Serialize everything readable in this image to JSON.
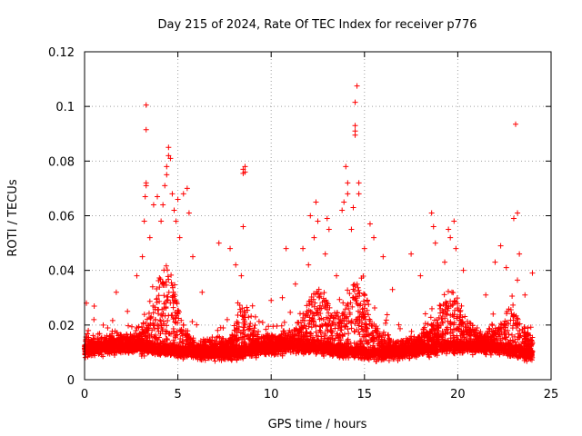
{
  "chart_data": {
    "type": "scatter",
    "title": "Day 215 of 2024, Rate Of TEC Index for receiver p776",
    "xlabel": "GPS time / hours",
    "ylabel": "ROTI / TECUs",
    "xlim": [
      0,
      25
    ],
    "ylim": [
      0,
      0.12
    ],
    "x_ticks": [
      0,
      5,
      10,
      15,
      20,
      25
    ],
    "x_tick_labels": [
      "0",
      "5",
      "10",
      "15",
      "20",
      "25"
    ],
    "y_ticks": [
      0,
      0.02,
      0.04,
      0.06,
      0.08,
      0.1,
      0.12
    ],
    "y_tick_labels": [
      "0",
      "0.02",
      "0.04",
      "0.06",
      "0.08",
      "0.1",
      "0.12"
    ],
    "grid": true,
    "marker": "plus",
    "color": "#ff0000",
    "series": [
      {
        "name": "ROTI",
        "description": "dense scatter of ROTI samples from 0 to 24 h",
        "points": [
          [
            0.1,
            0.028
          ],
          [
            0.2,
            0.018
          ],
          [
            0.5,
            0.022
          ],
          [
            1.0,
            0.02
          ],
          [
            1.7,
            0.032
          ],
          [
            2.3,
            0.025
          ],
          [
            2.8,
            0.038
          ],
          [
            3.1,
            0.045
          ],
          [
            3.2,
            0.058
          ],
          [
            3.25,
            0.067
          ],
          [
            3.3,
            0.071
          ],
          [
            3.3,
            0.072
          ],
          [
            3.3,
            0.0915
          ],
          [
            3.3,
            0.1005
          ],
          [
            3.5,
            0.052
          ],
          [
            3.7,
            0.064
          ],
          [
            3.9,
            0.067
          ],
          [
            4.1,
            0.058
          ],
          [
            4.2,
            0.064
          ],
          [
            4.3,
            0.071
          ],
          [
            4.4,
            0.075
          ],
          [
            4.4,
            0.078
          ],
          [
            4.5,
            0.082
          ],
          [
            4.5,
            0.085
          ],
          [
            4.6,
            0.081
          ],
          [
            4.7,
            0.068
          ],
          [
            4.8,
            0.062
          ],
          [
            4.9,
            0.058
          ],
          [
            5.0,
            0.066
          ],
          [
            5.1,
            0.052
          ],
          [
            5.3,
            0.068
          ],
          [
            5.5,
            0.07
          ],
          [
            5.6,
            0.061
          ],
          [
            5.8,
            0.045
          ],
          [
            6.3,
            0.032
          ],
          [
            7.2,
            0.05
          ],
          [
            7.8,
            0.048
          ],
          [
            8.1,
            0.042
          ],
          [
            8.4,
            0.038
          ],
          [
            8.5,
            0.0755
          ],
          [
            8.5,
            0.077
          ],
          [
            8.6,
            0.078
          ],
          [
            8.6,
            0.076
          ],
          [
            8.5,
            0.056
          ],
          [
            9.0,
            0.027
          ],
          [
            10.0,
            0.029
          ],
          [
            10.6,
            0.03
          ],
          [
            10.8,
            0.048
          ],
          [
            11.3,
            0.035
          ],
          [
            11.7,
            0.048
          ],
          [
            12.0,
            0.042
          ],
          [
            12.1,
            0.06
          ],
          [
            12.3,
            0.052
          ],
          [
            12.4,
            0.065
          ],
          [
            12.5,
            0.058
          ],
          [
            12.9,
            0.046
          ],
          [
            13.0,
            0.059
          ],
          [
            13.1,
            0.055
          ],
          [
            13.5,
            0.038
          ],
          [
            13.8,
            0.062
          ],
          [
            13.9,
            0.065
          ],
          [
            14.0,
            0.078
          ],
          [
            14.1,
            0.072
          ],
          [
            14.1,
            0.068
          ],
          [
            14.3,
            0.055
          ],
          [
            14.4,
            0.063
          ],
          [
            14.5,
            0.0895
          ],
          [
            14.5,
            0.091
          ],
          [
            14.5,
            0.093
          ],
          [
            14.5,
            0.1015
          ],
          [
            14.6,
            0.1075
          ],
          [
            14.7,
            0.072
          ],
          [
            14.7,
            0.068
          ],
          [
            15.0,
            0.048
          ],
          [
            15.3,
            0.057
          ],
          [
            15.5,
            0.052
          ],
          [
            16.0,
            0.045
          ],
          [
            16.5,
            0.033
          ],
          [
            17.5,
            0.046
          ],
          [
            18.0,
            0.038
          ],
          [
            18.6,
            0.061
          ],
          [
            18.7,
            0.056
          ],
          [
            18.8,
            0.05
          ],
          [
            19.3,
            0.043
          ],
          [
            19.5,
            0.055
          ],
          [
            19.6,
            0.052
          ],
          [
            19.8,
            0.058
          ],
          [
            19.9,
            0.048
          ],
          [
            20.3,
            0.04
          ],
          [
            21.5,
            0.031
          ],
          [
            22.0,
            0.043
          ],
          [
            22.3,
            0.049
          ],
          [
            22.6,
            0.041
          ],
          [
            23.0,
            0.059
          ],
          [
            23.1,
            0.0935
          ],
          [
            23.2,
            0.061
          ],
          [
            23.3,
            0.046
          ],
          [
            23.6,
            0.031
          ],
          [
            24.0,
            0.039
          ]
        ]
      }
    ]
  }
}
